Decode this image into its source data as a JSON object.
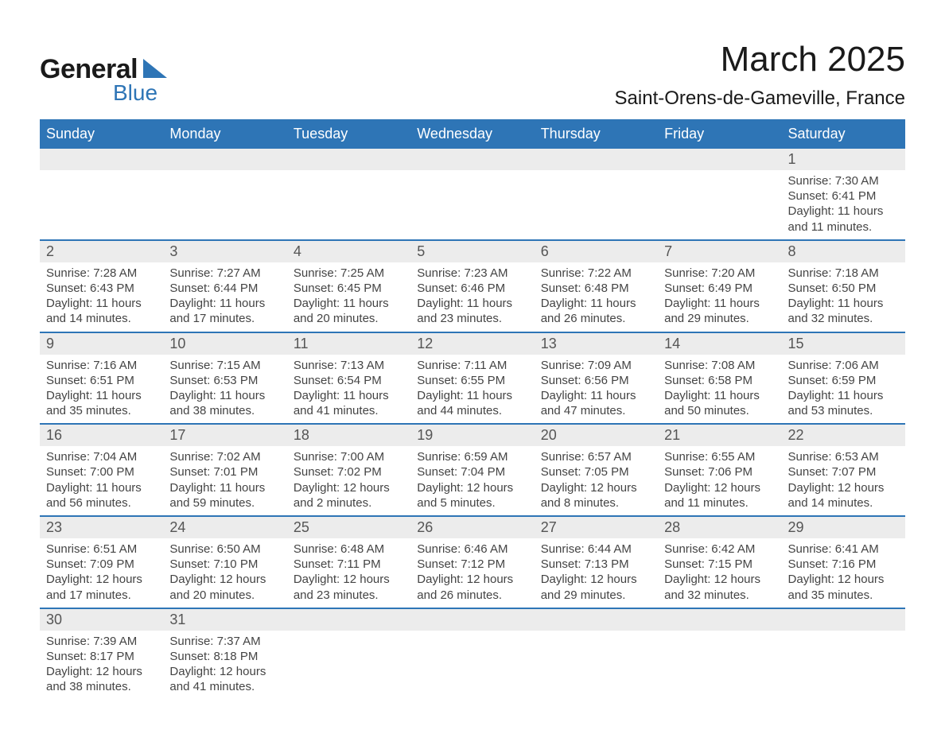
{
  "logo": {
    "text1": "General",
    "text2": "Blue",
    "accent_color": "#2e75b6"
  },
  "title": "March 2025",
  "location": "Saint-Orens-de-Gameville, France",
  "colors": {
    "header_bg": "#2e75b6",
    "header_text": "#ffffff",
    "daynum_bg": "#ececec",
    "row_divider": "#2e75b6",
    "text": "#444444"
  },
  "day_headers": [
    "Sunday",
    "Monday",
    "Tuesday",
    "Wednesday",
    "Thursday",
    "Friday",
    "Saturday"
  ],
  "weeks": [
    [
      {
        "n": "",
        "sunrise": "",
        "sunset": "",
        "daylight": ""
      },
      {
        "n": "",
        "sunrise": "",
        "sunset": "",
        "daylight": ""
      },
      {
        "n": "",
        "sunrise": "",
        "sunset": "",
        "daylight": ""
      },
      {
        "n": "",
        "sunrise": "",
        "sunset": "",
        "daylight": ""
      },
      {
        "n": "",
        "sunrise": "",
        "sunset": "",
        "daylight": ""
      },
      {
        "n": "",
        "sunrise": "",
        "sunset": "",
        "daylight": ""
      },
      {
        "n": "1",
        "sunrise": "Sunrise: 7:30 AM",
        "sunset": "Sunset: 6:41 PM",
        "daylight": "Daylight: 11 hours and 11 minutes."
      }
    ],
    [
      {
        "n": "2",
        "sunrise": "Sunrise: 7:28 AM",
        "sunset": "Sunset: 6:43 PM",
        "daylight": "Daylight: 11 hours and 14 minutes."
      },
      {
        "n": "3",
        "sunrise": "Sunrise: 7:27 AM",
        "sunset": "Sunset: 6:44 PM",
        "daylight": "Daylight: 11 hours and 17 minutes."
      },
      {
        "n": "4",
        "sunrise": "Sunrise: 7:25 AM",
        "sunset": "Sunset: 6:45 PM",
        "daylight": "Daylight: 11 hours and 20 minutes."
      },
      {
        "n": "5",
        "sunrise": "Sunrise: 7:23 AM",
        "sunset": "Sunset: 6:46 PM",
        "daylight": "Daylight: 11 hours and 23 minutes."
      },
      {
        "n": "6",
        "sunrise": "Sunrise: 7:22 AM",
        "sunset": "Sunset: 6:48 PM",
        "daylight": "Daylight: 11 hours and 26 minutes."
      },
      {
        "n": "7",
        "sunrise": "Sunrise: 7:20 AM",
        "sunset": "Sunset: 6:49 PM",
        "daylight": "Daylight: 11 hours and 29 minutes."
      },
      {
        "n": "8",
        "sunrise": "Sunrise: 7:18 AM",
        "sunset": "Sunset: 6:50 PM",
        "daylight": "Daylight: 11 hours and 32 minutes."
      }
    ],
    [
      {
        "n": "9",
        "sunrise": "Sunrise: 7:16 AM",
        "sunset": "Sunset: 6:51 PM",
        "daylight": "Daylight: 11 hours and 35 minutes."
      },
      {
        "n": "10",
        "sunrise": "Sunrise: 7:15 AM",
        "sunset": "Sunset: 6:53 PM",
        "daylight": "Daylight: 11 hours and 38 minutes."
      },
      {
        "n": "11",
        "sunrise": "Sunrise: 7:13 AM",
        "sunset": "Sunset: 6:54 PM",
        "daylight": "Daylight: 11 hours and 41 minutes."
      },
      {
        "n": "12",
        "sunrise": "Sunrise: 7:11 AM",
        "sunset": "Sunset: 6:55 PM",
        "daylight": "Daylight: 11 hours and 44 minutes."
      },
      {
        "n": "13",
        "sunrise": "Sunrise: 7:09 AM",
        "sunset": "Sunset: 6:56 PM",
        "daylight": "Daylight: 11 hours and 47 minutes."
      },
      {
        "n": "14",
        "sunrise": "Sunrise: 7:08 AM",
        "sunset": "Sunset: 6:58 PM",
        "daylight": "Daylight: 11 hours and 50 minutes."
      },
      {
        "n": "15",
        "sunrise": "Sunrise: 7:06 AM",
        "sunset": "Sunset: 6:59 PM",
        "daylight": "Daylight: 11 hours and 53 minutes."
      }
    ],
    [
      {
        "n": "16",
        "sunrise": "Sunrise: 7:04 AM",
        "sunset": "Sunset: 7:00 PM",
        "daylight": "Daylight: 11 hours and 56 minutes."
      },
      {
        "n": "17",
        "sunrise": "Sunrise: 7:02 AM",
        "sunset": "Sunset: 7:01 PM",
        "daylight": "Daylight: 11 hours and 59 minutes."
      },
      {
        "n": "18",
        "sunrise": "Sunrise: 7:00 AM",
        "sunset": "Sunset: 7:02 PM",
        "daylight": "Daylight: 12 hours and 2 minutes."
      },
      {
        "n": "19",
        "sunrise": "Sunrise: 6:59 AM",
        "sunset": "Sunset: 7:04 PM",
        "daylight": "Daylight: 12 hours and 5 minutes."
      },
      {
        "n": "20",
        "sunrise": "Sunrise: 6:57 AM",
        "sunset": "Sunset: 7:05 PM",
        "daylight": "Daylight: 12 hours and 8 minutes."
      },
      {
        "n": "21",
        "sunrise": "Sunrise: 6:55 AM",
        "sunset": "Sunset: 7:06 PM",
        "daylight": "Daylight: 12 hours and 11 minutes."
      },
      {
        "n": "22",
        "sunrise": "Sunrise: 6:53 AM",
        "sunset": "Sunset: 7:07 PM",
        "daylight": "Daylight: 12 hours and 14 minutes."
      }
    ],
    [
      {
        "n": "23",
        "sunrise": "Sunrise: 6:51 AM",
        "sunset": "Sunset: 7:09 PM",
        "daylight": "Daylight: 12 hours and 17 minutes."
      },
      {
        "n": "24",
        "sunrise": "Sunrise: 6:50 AM",
        "sunset": "Sunset: 7:10 PM",
        "daylight": "Daylight: 12 hours and 20 minutes."
      },
      {
        "n": "25",
        "sunrise": "Sunrise: 6:48 AM",
        "sunset": "Sunset: 7:11 PM",
        "daylight": "Daylight: 12 hours and 23 minutes."
      },
      {
        "n": "26",
        "sunrise": "Sunrise: 6:46 AM",
        "sunset": "Sunset: 7:12 PM",
        "daylight": "Daylight: 12 hours and 26 minutes."
      },
      {
        "n": "27",
        "sunrise": "Sunrise: 6:44 AM",
        "sunset": "Sunset: 7:13 PM",
        "daylight": "Daylight: 12 hours and 29 minutes."
      },
      {
        "n": "28",
        "sunrise": "Sunrise: 6:42 AM",
        "sunset": "Sunset: 7:15 PM",
        "daylight": "Daylight: 12 hours and 32 minutes."
      },
      {
        "n": "29",
        "sunrise": "Sunrise: 6:41 AM",
        "sunset": "Sunset: 7:16 PM",
        "daylight": "Daylight: 12 hours and 35 minutes."
      }
    ],
    [
      {
        "n": "30",
        "sunrise": "Sunrise: 7:39 AM",
        "sunset": "Sunset: 8:17 PM",
        "daylight": "Daylight: 12 hours and 38 minutes."
      },
      {
        "n": "31",
        "sunrise": "Sunrise: 7:37 AM",
        "sunset": "Sunset: 8:18 PM",
        "daylight": "Daylight: 12 hours and 41 minutes."
      },
      {
        "n": "",
        "sunrise": "",
        "sunset": "",
        "daylight": ""
      },
      {
        "n": "",
        "sunrise": "",
        "sunset": "",
        "daylight": ""
      },
      {
        "n": "",
        "sunrise": "",
        "sunset": "",
        "daylight": ""
      },
      {
        "n": "",
        "sunrise": "",
        "sunset": "",
        "daylight": ""
      },
      {
        "n": "",
        "sunrise": "",
        "sunset": "",
        "daylight": ""
      }
    ]
  ]
}
